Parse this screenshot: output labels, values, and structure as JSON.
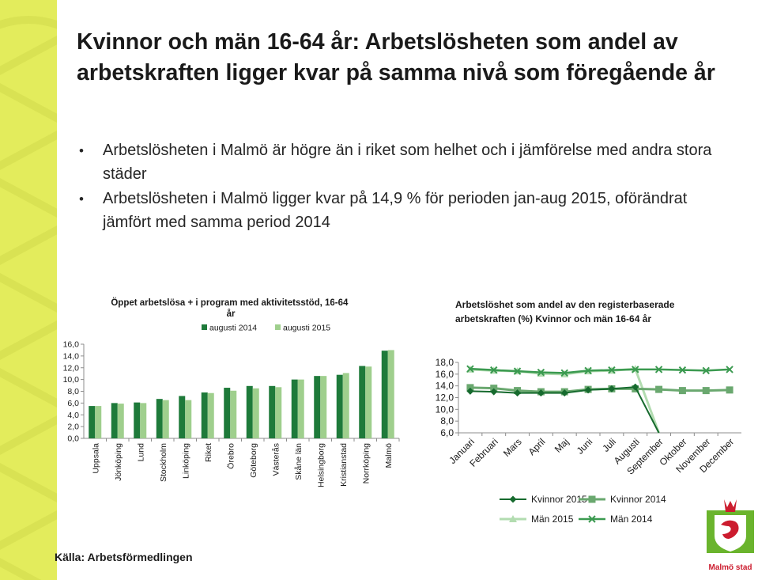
{
  "slide": {
    "title": "Kvinnor och män 16-64 år: Arbetslösheten som andel av arbetskraften ligger kvar på samma nivå som föregående år",
    "bullets": [
      "Arbetslösheten i Malmö är högre än i riket som helhet och i jämförelse med andra stora städer",
      "Arbetslösheten i Malmö ligger kvar på 14,9 % för perioden jan-aug 2015, oförändrat jämfört med samma period 2014"
    ],
    "source": "Källa: Arbetsförmedlingen"
  },
  "logo": {
    "text": "Malmö stad",
    "color": "#cc1c2e",
    "accent": "#6ab42d"
  },
  "colors": {
    "stripe": "#e3ec5c",
    "bar_2014": "#1e7a3a",
    "bar_2015": "#9fcf8d",
    "line_k2015": "#166a2e",
    "line_k2014": "#6aa86f",
    "line_m2015": "#b2dcb0",
    "line_m2014": "#3b9a50"
  },
  "chart_data": [
    {
      "type": "bar",
      "title": "Öppet arbetslösa + i program med aktivitetsstöd, 16-64 år",
      "categories": [
        "Uppsala",
        "Jönköping",
        "Lund",
        "Stockholm",
        "Linköping",
        "Riket",
        "Örebro",
        "Göteborg",
        "Västerås",
        "Skåne län",
        "Helsingborg",
        "Kristianstad",
        "Norrköping",
        "Malmö"
      ],
      "series": [
        {
          "name": "augusti 2014",
          "values": [
            5.5,
            6.0,
            6.1,
            6.7,
            7.2,
            7.8,
            8.6,
            8.9,
            8.9,
            10.0,
            10.6,
            10.8,
            12.3,
            14.9
          ]
        },
        {
          "name": "augusti 2015",
          "values": [
            5.5,
            5.9,
            6.0,
            6.5,
            6.5,
            7.7,
            8.1,
            8.5,
            8.7,
            10.0,
            10.6,
            11.1,
            12.2,
            15.0
          ]
        }
      ],
      "yticks": [
        "0,0",
        "2,0",
        "4,0",
        "6,0",
        "8,0",
        "10,0",
        "12,0",
        "14,0",
        "16,0"
      ],
      "ylim": [
        0,
        16
      ],
      "grid": false,
      "legend": "top"
    },
    {
      "type": "line",
      "title": "Arbetslöshet som andel av den registerbaserade arbetskraften (%) Kvinnor och män 16-64 år",
      "categories": [
        "Januari",
        "Februari",
        "Mars",
        "April",
        "Maj",
        "Juni",
        "Juli",
        "Augusti",
        "September",
        "Oktober",
        "November",
        "December"
      ],
      "series": [
        {
          "name": "Kvinnor 2015",
          "values": [
            13.1,
            13.0,
            12.8,
            12.8,
            12.8,
            13.3,
            13.5,
            13.8,
            4.0,
            null,
            null,
            null
          ]
        },
        {
          "name": "Kvinnor 2014",
          "values": [
            13.7,
            13.6,
            13.2,
            13.0,
            13.0,
            13.4,
            13.5,
            13.5,
            13.4,
            13.2,
            13.2,
            13.3
          ]
        },
        {
          "name": "Män 2015",
          "values": [
            16.8,
            16.6,
            16.5,
            16.1,
            16.0,
            16.5,
            16.6,
            16.9,
            4.0,
            null,
            null,
            null
          ]
        },
        {
          "name": "Män 2014",
          "values": [
            16.9,
            16.7,
            16.5,
            16.3,
            16.2,
            16.6,
            16.7,
            16.8,
            16.8,
            16.7,
            16.6,
            16.8
          ]
        }
      ],
      "yticks": [
        "6,0",
        "8,0",
        "10,0",
        "12,0",
        "14,0",
        "16,0",
        "18,0"
      ],
      "ylim": [
        6,
        18
      ],
      "grid": false,
      "legend": "bottom"
    }
  ]
}
